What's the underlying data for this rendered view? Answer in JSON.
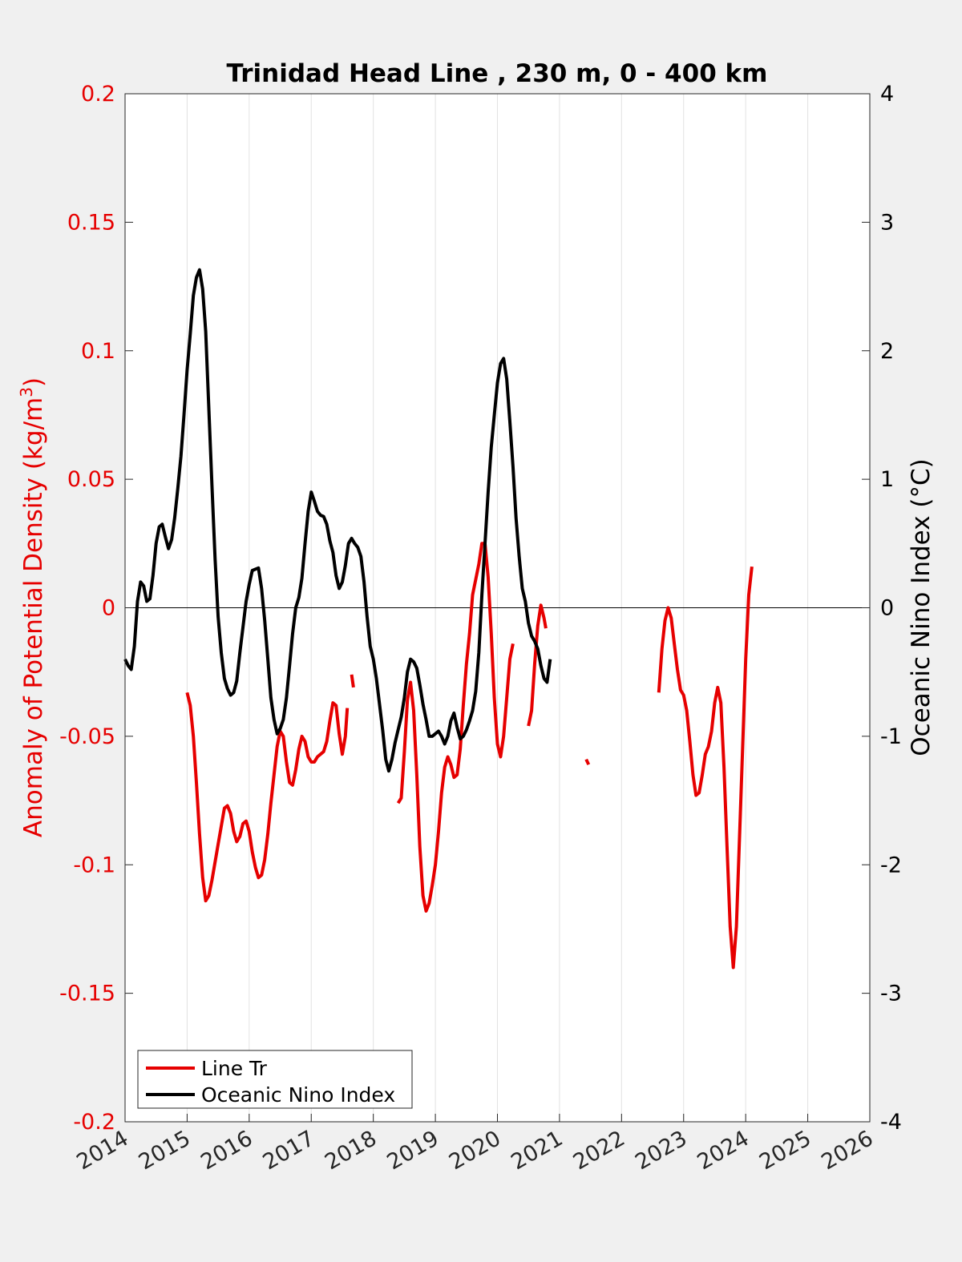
{
  "colors": {
    "background": "#f0f0f0",
    "plot_background": "#ffffff",
    "density": "#e60000",
    "oni": "#000000",
    "grid": "#e2e2e2"
  },
  "chart_data": {
    "type": "line",
    "title": "Trinidad Head Line , 230 m, 0 - 400 km",
    "xlabel": "",
    "ylabel_left": "Anomaly of Potential Density (kg/m",
    "ylabel_left_superscript": "3",
    "ylabel_left_close": ")",
    "ylabel_right": "Oceanic Nino Index (°C)",
    "xlim": [
      2014,
      2026
    ],
    "ylim_left": [
      -0.2,
      0.2
    ],
    "ylim_right": [
      -4,
      4
    ],
    "xticks": [
      "2014",
      "2015",
      "2016",
      "2017",
      "2018",
      "2019",
      "2020",
      "2021",
      "2022",
      "2023",
      "2024",
      "2025",
      "2026"
    ],
    "yticks_left": [
      "0.2",
      "0.15",
      "0.1",
      "0.05",
      "0",
      "-0.05",
      "-0.1",
      "-0.15",
      "-0.2"
    ],
    "yticks_right": [
      "4",
      "3",
      "2",
      "1",
      "0",
      "-1",
      "-2",
      "-3",
      "-4"
    ],
    "grid": "vertical",
    "zero_line": true,
    "legend_position": "bottom-left",
    "legend": [
      "Line Tr",
      "Oceanic Nino Index"
    ],
    "series": [
      {
        "name": "Line Tr",
        "axis": "left",
        "color": "#e60000",
        "segments": [
          [
            [
              2015.0,
              -0.033
            ],
            [
              2015.05,
              -0.038
            ],
            [
              2015.1,
              -0.05
            ],
            [
              2015.15,
              -0.068
            ],
            [
              2015.2,
              -0.088
            ],
            [
              2015.25,
              -0.105
            ],
            [
              2015.3,
              -0.114
            ],
            [
              2015.35,
              -0.112
            ],
            [
              2015.4,
              -0.106
            ],
            [
              2015.5,
              -0.092
            ],
            [
              2015.55,
              -0.085
            ],
            [
              2015.6,
              -0.078
            ],
            [
              2015.65,
              -0.077
            ],
            [
              2015.7,
              -0.08
            ],
            [
              2015.75,
              -0.087
            ],
            [
              2015.8,
              -0.091
            ],
            [
              2015.85,
              -0.089
            ],
            [
              2015.9,
              -0.084
            ],
            [
              2015.95,
              -0.083
            ],
            [
              2016.0,
              -0.087
            ],
            [
              2016.05,
              -0.095
            ],
            [
              2016.1,
              -0.101
            ],
            [
              2016.15,
              -0.105
            ],
            [
              2016.2,
              -0.104
            ],
            [
              2016.25,
              -0.098
            ],
            [
              2016.3,
              -0.088
            ],
            [
              2016.35,
              -0.076
            ],
            [
              2016.4,
              -0.065
            ],
            [
              2016.45,
              -0.054
            ],
            [
              2016.5,
              -0.048
            ],
            [
              2016.55,
              -0.05
            ],
            [
              2016.6,
              -0.06
            ],
            [
              2016.65,
              -0.068
            ],
            [
              2016.7,
              -0.069
            ],
            [
              2016.75,
              -0.063
            ],
            [
              2016.8,
              -0.055
            ],
            [
              2016.85,
              -0.05
            ],
            [
              2016.9,
              -0.052
            ],
            [
              2016.95,
              -0.058
            ],
            [
              2017.0,
              -0.06
            ],
            [
              2017.05,
              -0.06
            ],
            [
              2017.1,
              -0.058
            ],
            [
              2017.2,
              -0.056
            ],
            [
              2017.25,
              -0.052
            ],
            [
              2017.3,
              -0.044
            ],
            [
              2017.35,
              -0.037
            ],
            [
              2017.4,
              -0.038
            ],
            [
              2017.45,
              -0.049
            ],
            [
              2017.5,
              -0.057
            ],
            [
              2017.55,
              -0.05
            ],
            [
              2017.58,
              -0.039
            ]
          ],
          [
            [
              2017.65,
              -0.026
            ],
            [
              2017.68,
              -0.031
            ]
          ],
          [
            [
              2018.4,
              -0.076
            ],
            [
              2018.45,
              -0.074
            ],
            [
              2018.5,
              -0.056
            ],
            [
              2018.55,
              -0.036
            ],
            [
              2018.6,
              -0.029
            ],
            [
              2018.65,
              -0.04
            ],
            [
              2018.7,
              -0.065
            ],
            [
              2018.75,
              -0.093
            ],
            [
              2018.8,
              -0.112
            ],
            [
              2018.85,
              -0.118
            ],
            [
              2018.9,
              -0.115
            ],
            [
              2018.95,
              -0.108
            ],
            [
              2019.0,
              -0.1
            ],
            [
              2019.05,
              -0.087
            ],
            [
              2019.1,
              -0.072
            ],
            [
              2019.15,
              -0.062
            ],
            [
              2019.2,
              -0.058
            ],
            [
              2019.25,
              -0.061
            ],
            [
              2019.3,
              -0.066
            ],
            [
              2019.35,
              -0.065
            ],
            [
              2019.4,
              -0.055
            ],
            [
              2019.45,
              -0.038
            ],
            [
              2019.5,
              -0.022
            ],
            [
              2019.55,
              -0.01
            ],
            [
              2019.6,
              0.005
            ],
            [
              2019.7,
              0.017
            ],
            [
              2019.75,
              0.025
            ],
            [
              2019.8,
              0.025
            ],
            [
              2019.85,
              0.012
            ],
            [
              2019.9,
              -0.01
            ],
            [
              2019.95,
              -0.035
            ],
            [
              2020.0,
              -0.053
            ],
            [
              2020.05,
              -0.058
            ],
            [
              2020.1,
              -0.05
            ],
            [
              2020.15,
              -0.035
            ],
            [
              2020.2,
              -0.02
            ],
            [
              2020.25,
              -0.014
            ]
          ],
          [
            [
              2020.5,
              -0.046
            ],
            [
              2020.55,
              -0.04
            ],
            [
              2020.6,
              -0.022
            ],
            [
              2020.65,
              -0.007
            ],
            [
              2020.7,
              0.001
            ],
            [
              2020.75,
              -0.004
            ],
            [
              2020.78,
              -0.008
            ]
          ],
          [
            [
              2021.43,
              -0.059
            ],
            [
              2021.47,
              -0.061
            ]
          ],
          [
            [
              2022.6,
              -0.033
            ],
            [
              2022.65,
              -0.016
            ],
            [
              2022.7,
              -0.005
            ],
            [
              2022.75,
              0.0
            ],
            [
              2022.8,
              -0.004
            ],
            [
              2022.85,
              -0.014
            ],
            [
              2022.9,
              -0.024
            ],
            [
              2022.95,
              -0.032
            ],
            [
              2023.0,
              -0.034
            ],
            [
              2023.05,
              -0.04
            ],
            [
              2023.1,
              -0.052
            ],
            [
              2023.15,
              -0.065
            ],
            [
              2023.2,
              -0.073
            ],
            [
              2023.25,
              -0.072
            ],
            [
              2023.3,
              -0.065
            ],
            [
              2023.35,
              -0.057
            ],
            [
              2023.4,
              -0.054
            ],
            [
              2023.45,
              -0.048
            ],
            [
              2023.5,
              -0.037
            ],
            [
              2023.55,
              -0.031
            ],
            [
              2023.6,
              -0.037
            ],
            [
              2023.65,
              -0.062
            ],
            [
              2023.7,
              -0.093
            ],
            [
              2023.75,
              -0.124
            ],
            [
              2023.8,
              -0.14
            ],
            [
              2023.85,
              -0.124
            ],
            [
              2023.9,
              -0.09
            ],
            [
              2023.95,
              -0.055
            ],
            [
              2024.0,
              -0.02
            ],
            [
              2024.05,
              0.005
            ],
            [
              2024.1,
              0.016
            ]
          ]
        ]
      },
      {
        "name": "Oceanic Nino Index",
        "axis": "right",
        "color": "#000000",
        "points": [
          [
            2014.0,
            -0.4
          ],
          [
            2014.05,
            -0.45
          ],
          [
            2014.1,
            -0.48
          ],
          [
            2014.15,
            -0.3
          ],
          [
            2014.2,
            0.05
          ],
          [
            2014.25,
            0.2
          ],
          [
            2014.3,
            0.17
          ],
          [
            2014.35,
            0.05
          ],
          [
            2014.4,
            0.07
          ],
          [
            2014.45,
            0.25
          ],
          [
            2014.5,
            0.5
          ],
          [
            2014.55,
            0.63
          ],
          [
            2014.6,
            0.65
          ],
          [
            2014.65,
            0.55
          ],
          [
            2014.7,
            0.46
          ],
          [
            2014.75,
            0.53
          ],
          [
            2014.8,
            0.7
          ],
          [
            2014.85,
            0.93
          ],
          [
            2014.9,
            1.18
          ],
          [
            2014.95,
            1.5
          ],
          [
            2015.0,
            1.85
          ],
          [
            2015.05,
            2.13
          ],
          [
            2015.1,
            2.43
          ],
          [
            2015.15,
            2.57
          ],
          [
            2015.2,
            2.63
          ],
          [
            2015.25,
            2.48
          ],
          [
            2015.3,
            2.15
          ],
          [
            2015.35,
            1.55
          ],
          [
            2015.4,
            0.95
          ],
          [
            2015.45,
            0.38
          ],
          [
            2015.5,
            -0.07
          ],
          [
            2015.55,
            -0.35
          ],
          [
            2015.6,
            -0.55
          ],
          [
            2015.65,
            -0.63
          ],
          [
            2015.7,
            -0.68
          ],
          [
            2015.75,
            -0.66
          ],
          [
            2015.8,
            -0.57
          ],
          [
            2015.85,
            -0.35
          ],
          [
            2015.9,
            -0.15
          ],
          [
            2015.95,
            0.05
          ],
          [
            2016.0,
            0.18
          ],
          [
            2016.05,
            0.29
          ],
          [
            2016.15,
            0.31
          ],
          [
            2016.2,
            0.15
          ],
          [
            2016.25,
            -0.1
          ],
          [
            2016.3,
            -0.4
          ],
          [
            2016.35,
            -0.7
          ],
          [
            2016.4,
            -0.87
          ],
          [
            2016.45,
            -0.98
          ],
          [
            2016.5,
            -0.94
          ],
          [
            2016.55,
            -0.87
          ],
          [
            2016.6,
            -0.7
          ],
          [
            2016.65,
            -0.45
          ],
          [
            2016.7,
            -0.2
          ],
          [
            2016.75,
            0.0
          ],
          [
            2016.8,
            0.08
          ],
          [
            2016.85,
            0.23
          ],
          [
            2016.9,
            0.5
          ],
          [
            2016.95,
            0.75
          ],
          [
            2017.0,
            0.9
          ],
          [
            2017.05,
            0.83
          ],
          [
            2017.1,
            0.75
          ],
          [
            2017.15,
            0.72
          ],
          [
            2017.2,
            0.71
          ],
          [
            2017.25,
            0.65
          ],
          [
            2017.3,
            0.52
          ],
          [
            2017.35,
            0.43
          ],
          [
            2017.4,
            0.25
          ],
          [
            2017.45,
            0.15
          ],
          [
            2017.5,
            0.2
          ],
          [
            2017.55,
            0.33
          ],
          [
            2017.6,
            0.5
          ],
          [
            2017.65,
            0.54
          ],
          [
            2017.7,
            0.5
          ],
          [
            2017.75,
            0.47
          ],
          [
            2017.8,
            0.4
          ],
          [
            2017.85,
            0.2
          ],
          [
            2017.9,
            -0.07
          ],
          [
            2017.95,
            -0.3
          ],
          [
            2018.0,
            -0.4
          ],
          [
            2018.05,
            -0.55
          ],
          [
            2018.1,
            -0.75
          ],
          [
            2018.15,
            -0.95
          ],
          [
            2018.2,
            -1.18
          ],
          [
            2018.25,
            -1.27
          ],
          [
            2018.3,
            -1.18
          ],
          [
            2018.35,
            -1.05
          ],
          [
            2018.4,
            -0.95
          ],
          [
            2018.45,
            -0.85
          ],
          [
            2018.5,
            -0.7
          ],
          [
            2018.55,
            -0.5
          ],
          [
            2018.6,
            -0.4
          ],
          [
            2018.65,
            -0.42
          ],
          [
            2018.7,
            -0.47
          ],
          [
            2018.75,
            -0.6
          ],
          [
            2018.8,
            -0.75
          ],
          [
            2018.85,
            -0.87
          ],
          [
            2018.9,
            -1.0
          ],
          [
            2018.95,
            -1.0
          ],
          [
            2019.0,
            -0.98
          ],
          [
            2019.05,
            -0.96
          ],
          [
            2019.1,
            -1.0
          ],
          [
            2019.15,
            -1.06
          ],
          [
            2019.2,
            -1.0
          ],
          [
            2019.25,
            -0.88
          ],
          [
            2019.3,
            -0.82
          ],
          [
            2019.35,
            -0.93
          ],
          [
            2019.4,
            -1.02
          ],
          [
            2019.45,
            -1.0
          ],
          [
            2019.5,
            -0.95
          ],
          [
            2019.55,
            -0.88
          ],
          [
            2019.6,
            -0.8
          ],
          [
            2019.65,
            -0.65
          ],
          [
            2019.7,
            -0.35
          ],
          [
            2019.75,
            0.1
          ],
          [
            2019.8,
            0.5
          ],
          [
            2019.85,
            0.9
          ],
          [
            2019.9,
            1.25
          ],
          [
            2019.95,
            1.5
          ],
          [
            2020.0,
            1.75
          ],
          [
            2020.05,
            1.9
          ],
          [
            2020.1,
            1.94
          ],
          [
            2020.15,
            1.78
          ],
          [
            2020.2,
            1.45
          ],
          [
            2020.25,
            1.1
          ],
          [
            2020.3,
            0.7
          ],
          [
            2020.35,
            0.4
          ],
          [
            2020.4,
            0.15
          ],
          [
            2020.45,
            0.05
          ],
          [
            2020.5,
            -0.12
          ],
          [
            2020.55,
            -0.22
          ],
          [
            2020.6,
            -0.26
          ],
          [
            2020.65,
            -0.32
          ],
          [
            2020.7,
            -0.45
          ],
          [
            2020.75,
            -0.55
          ],
          [
            2020.8,
            -0.58
          ],
          [
            2020.85,
            -0.4
          ]
        ]
      }
    ]
  }
}
